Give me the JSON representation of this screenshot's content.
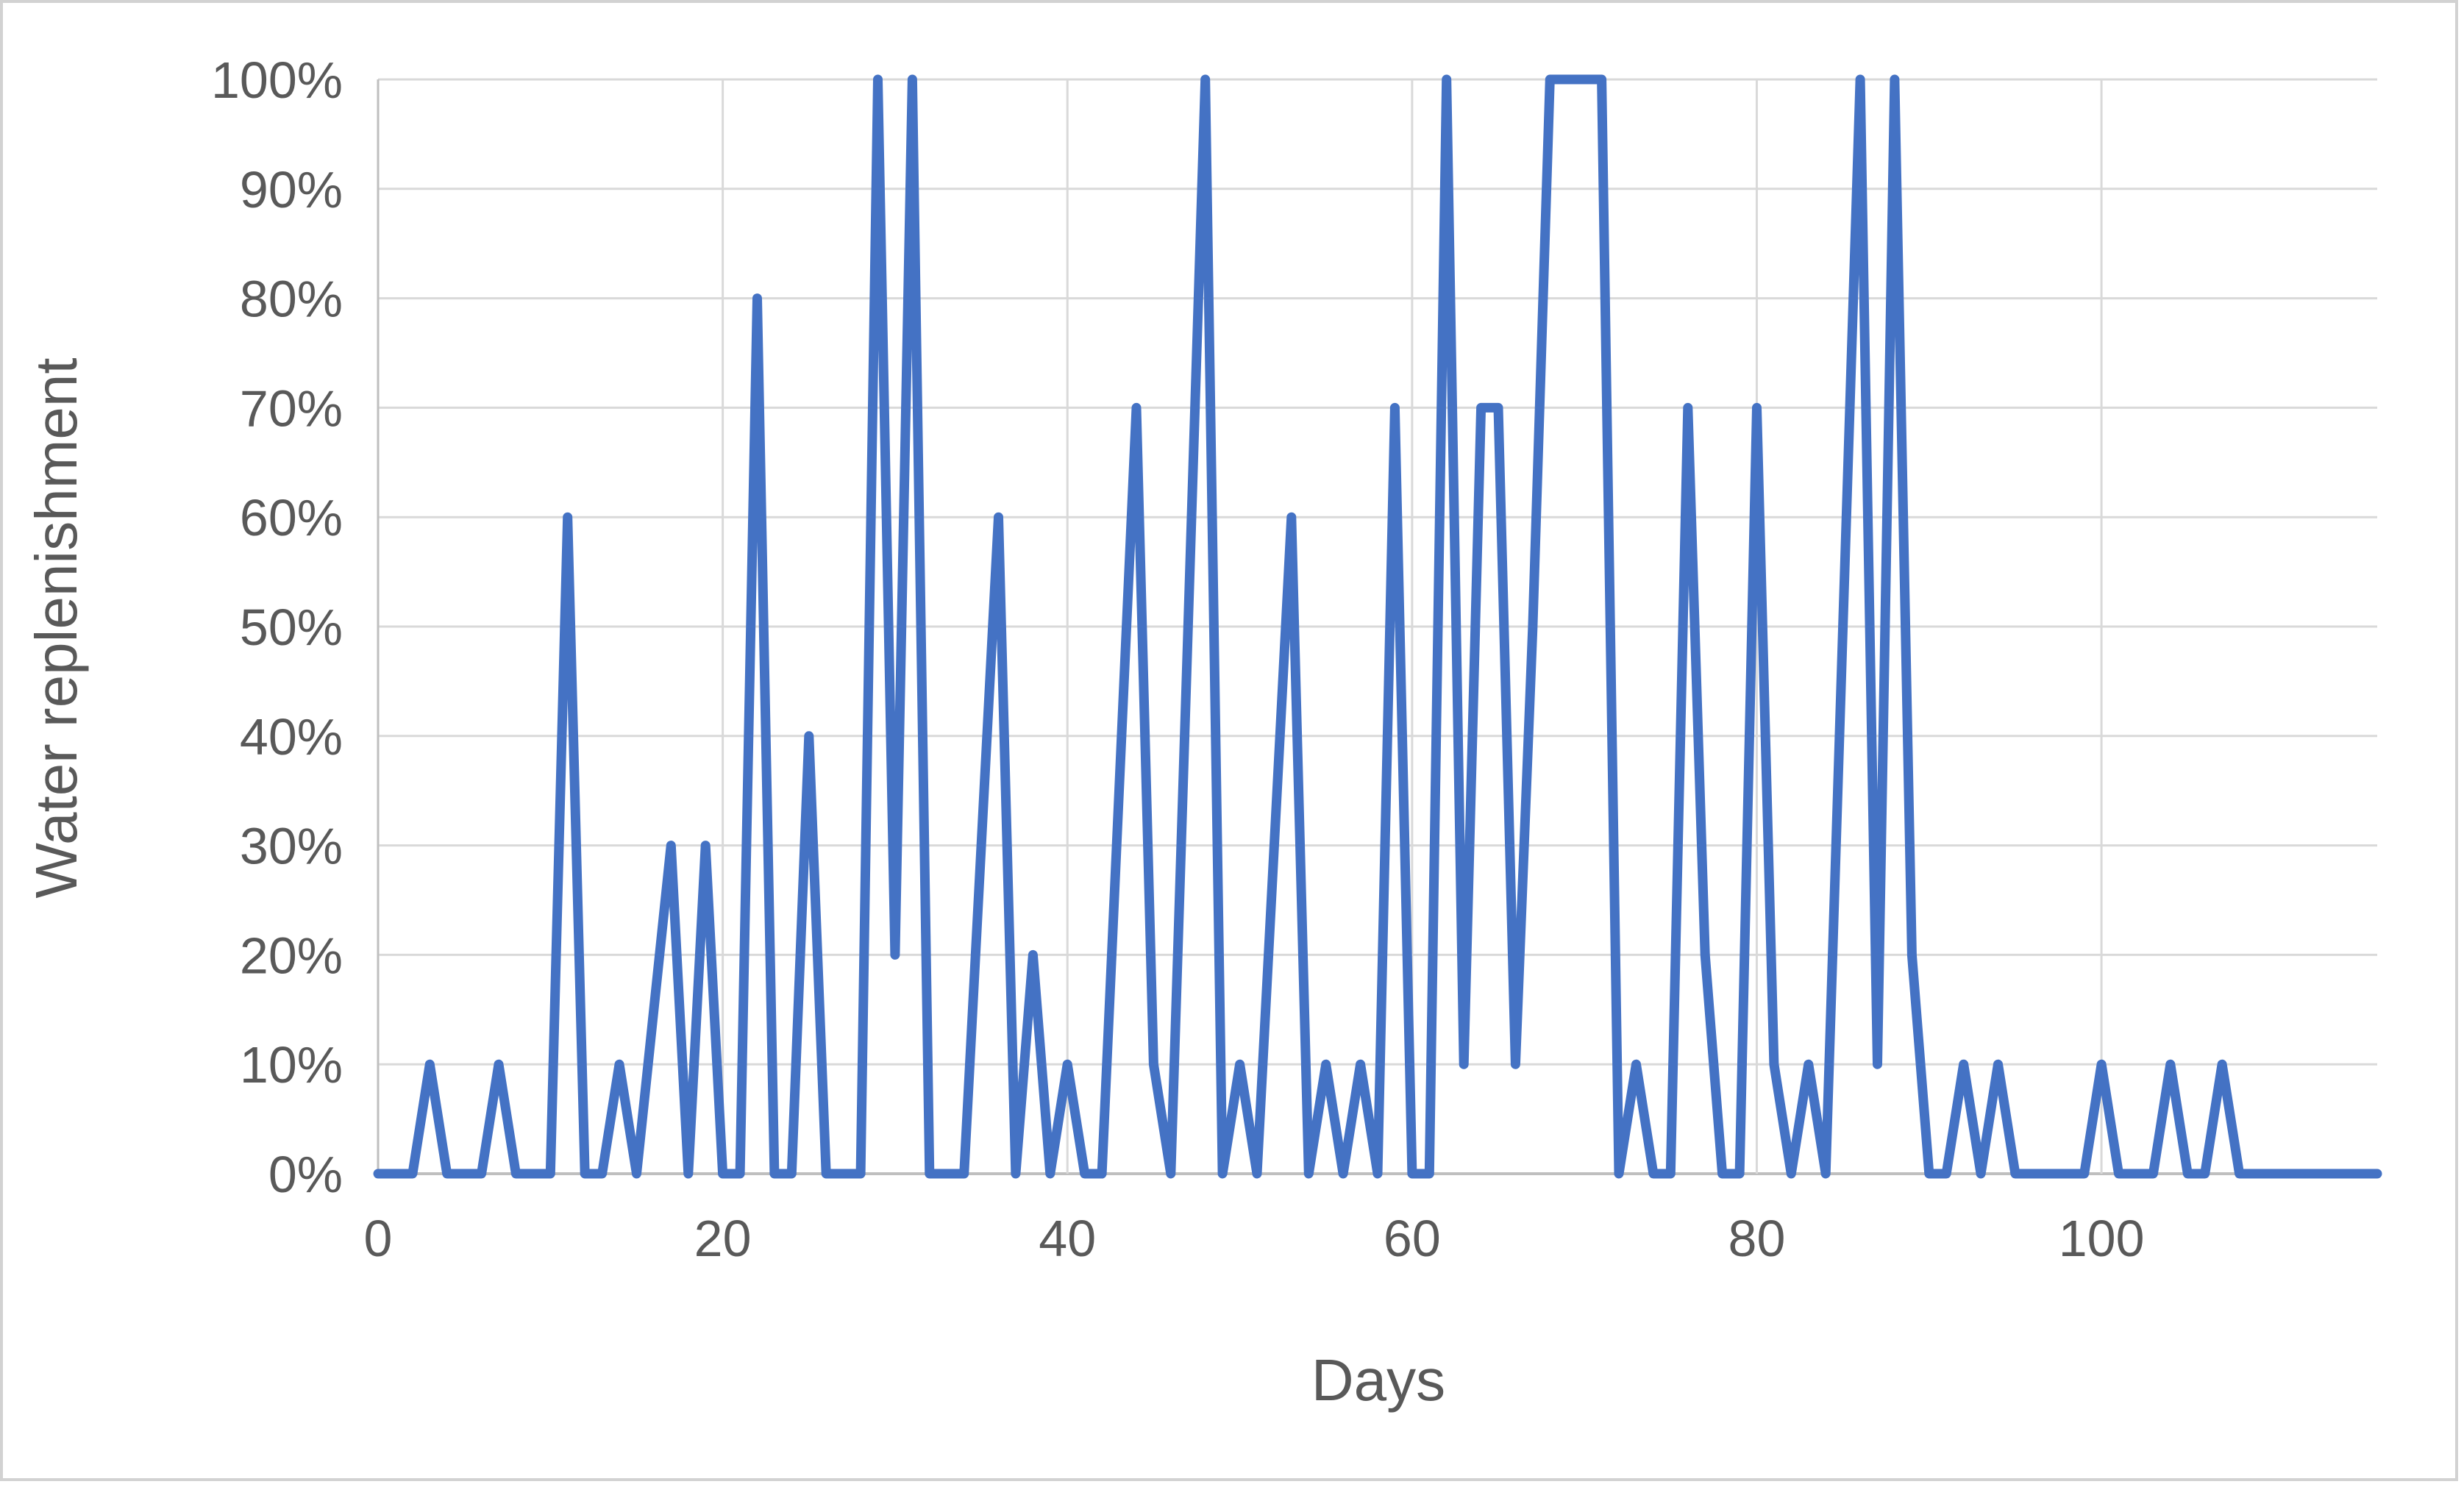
{
  "chart_data": {
    "type": "line",
    "title": "",
    "xlabel": "Days",
    "ylabel": "Water replenishment",
    "xlim": [
      0,
      116
    ],
    "ylim": [
      0,
      100
    ],
    "grid": "on",
    "legend": "none",
    "line_color": "#4472C4",
    "gridline_color": "#d9d9d9",
    "axis_line_color": "#bfbfbf",
    "label_color": "#595959",
    "x_ticks": [
      0,
      20,
      40,
      60,
      80,
      100
    ],
    "x_tick_labels": [
      "0",
      "20",
      "40",
      "60",
      "80",
      "100"
    ],
    "y_ticks": [
      100,
      90,
      80,
      70,
      60,
      50,
      40,
      30,
      20,
      10,
      0
    ],
    "y_tick_labels": [
      "100%",
      "90%",
      "80%",
      "70%",
      "60%",
      "50%",
      "40%",
      "30%",
      "20%",
      "10%",
      "0%"
    ],
    "x_start_day": 0,
    "values_unit": "percent",
    "values": [
      0,
      0,
      0,
      10,
      0,
      0,
      0,
      10,
      0,
      0,
      0,
      60,
      0,
      0,
      10,
      0,
      15,
      30,
      0,
      30,
      0,
      0,
      80,
      0,
      0,
      40,
      0,
      0,
      0,
      100,
      20,
      100,
      0,
      0,
      0,
      30,
      60,
      0,
      20,
      0,
      10,
      0,
      0,
      35,
      70,
      10,
      0,
      50,
      100,
      0,
      10,
      0,
      30,
      60,
      0,
      10,
      0,
      10,
      0,
      70,
      0,
      0,
      100,
      10,
      70,
      70,
      10,
      50,
      100,
      100,
      100,
      100,
      0,
      10,
      0,
      0,
      70,
      20,
      0,
      0,
      70,
      10,
      0,
      10,
      0,
      50,
      100,
      10,
      100,
      20,
      0,
      0,
      10,
      0,
      10,
      0,
      0,
      0,
      0,
      0,
      10,
      0,
      0,
      0,
      10,
      0,
      0,
      10,
      0,
      0,
      0,
      0,
      0,
      0,
      0,
      0,
      0
    ]
  }
}
